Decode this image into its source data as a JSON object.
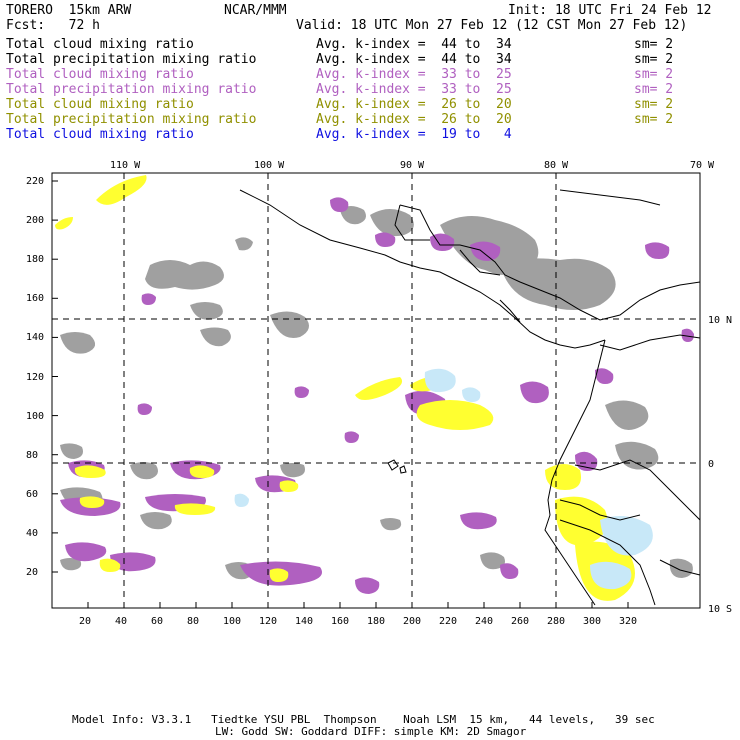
{
  "header": {
    "model": "TORERO  15km ARW",
    "org": "NCAR/MMM",
    "init": "Init: 18 UTC Fri 24 Feb 12",
    "fcst": "Fcst:   72 h",
    "valid": "Valid: 18 UTC Mon 27 Feb 12 (12 CST Mon 27 Feb 12)"
  },
  "legend": [
    {
      "field": "Total cloud mixing ratio",
      "kindex": "Avg. k-index =  44 to  34",
      "sm": "sm= 2",
      "color": "#000000"
    },
    {
      "field": "Total precipitation mixing ratio",
      "kindex": "Avg. k-index =  44 to  34",
      "sm": "sm= 2",
      "color": "#000000"
    },
    {
      "field": "Total cloud mixing ratio",
      "kindex": "Avg. k-index =  33 to  25",
      "sm": "sm= 2",
      "color": "#b060c0"
    },
    {
      "field": "Total precipitation mixing ratio",
      "kindex": "Avg. k-index =  33 to  25",
      "sm": "sm= 2",
      "color": "#b060c0"
    },
    {
      "field": "Total cloud mixing ratio",
      "kindex": "Avg. k-index =  26 to  20",
      "sm": "sm= 2",
      "color": "#909000"
    },
    {
      "field": "Total precipitation mixing ratio",
      "kindex": "Avg. k-index =  26 to  20",
      "sm": "sm= 2",
      "color": "#909000"
    },
    {
      "field": "Total cloud mixing ratio",
      "kindex": "Avg. k-index =  19 to   4",
      "sm": "",
      "color": "#1010e0"
    }
  ],
  "map": {
    "lon_labels": [
      "110 W",
      "100 W",
      "90 W",
      "80 W",
      "70 W"
    ],
    "lat_labels": [
      "10 N",
      "0",
      "10 S"
    ],
    "y_ticks": [
      "220",
      "200",
      "180",
      "160",
      "140",
      "120",
      "100",
      "80",
      "60",
      "40",
      "20"
    ],
    "x_ticks": [
      "20",
      "40",
      "60",
      "80",
      "100",
      "120",
      "140",
      "160",
      "180",
      "200",
      "220",
      "240",
      "260",
      "280",
      "300",
      "320"
    ],
    "colors": {
      "gray": "#a0a0a0",
      "purple": "#b060c0",
      "yellow": "#ffff30",
      "lightblue": "#c8e8f8",
      "coast": "#000000"
    }
  },
  "footer": {
    "line1": "Model Info: V3.3.1   Tiedtke YSU PBL  Thompson    Noah LSM  15 km,   44 levels,   39 sec",
    "line2": "LW: Godd SW: Goddard DIFF: simple KM: 2D Smagor"
  }
}
